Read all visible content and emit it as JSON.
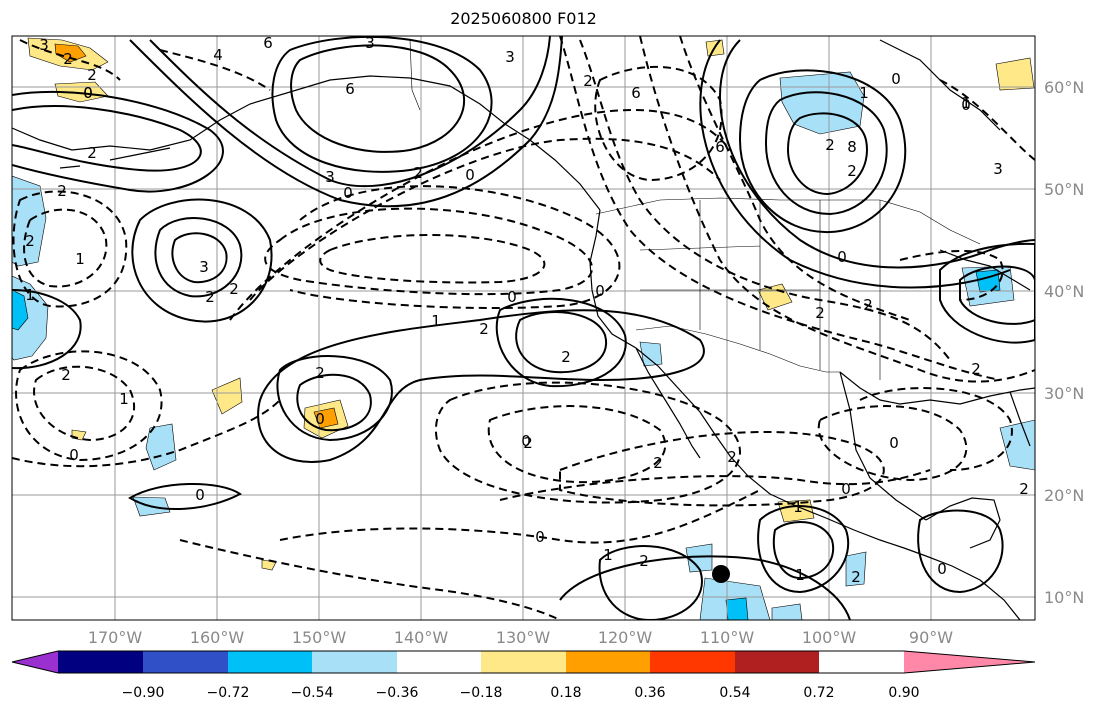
{
  "title": "2025060800 F012",
  "map": {
    "lon_labels": [
      "170°W",
      "160°W",
      "150°W",
      "140°W",
      "130°W",
      "120°W",
      "110°W",
      "100°W",
      "90°W"
    ],
    "lat_labels": [
      "60°N",
      "50°N",
      "40°N",
      "30°N",
      "20°N",
      "10°N"
    ],
    "contour_labels": [
      "3",
      "2",
      "2",
      "0",
      "6",
      "3",
      "6",
      "3",
      "2",
      "4",
      "0",
      "6",
      "2",
      "0",
      "3",
      "2",
      "0",
      "2",
      "1",
      "3",
      "2",
      "2",
      "0",
      "0",
      "2",
      "2",
      "1",
      "2",
      "0",
      "2",
      "1",
      "2",
      "2",
      "0",
      "1",
      "2",
      "6",
      "8",
      "2",
      "2",
      "0",
      "3",
      "2",
      "0",
      "2",
      "2",
      "0",
      "2",
      "1",
      "0",
      "1",
      "2",
      "0",
      "1",
      "0",
      "1",
      "2",
      "1",
      "0",
      "2",
      "0",
      "0"
    ],
    "marker": "black-dot"
  },
  "colorbar": {
    "colors": [
      "#9b30d0",
      "#000080",
      "#3050c8",
      "#00c0f8",
      "#a8e0f8",
      "#ffffff",
      "#ffe888",
      "#ffa000",
      "#ff3800",
      "#b02020",
      "#ff88a8"
    ],
    "tick_labels": [
      "−0.90",
      "−0.72",
      "−0.54",
      "−0.36",
      "−0.18",
      "0.18",
      "0.36",
      "0.54",
      "0.72",
      "0.90"
    ]
  }
}
